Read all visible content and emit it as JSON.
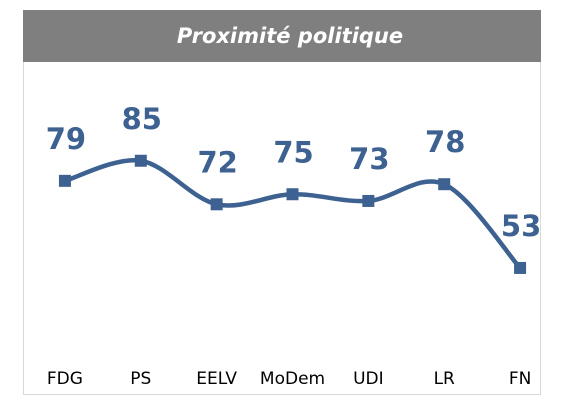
{
  "chart_data": {
    "type": "line",
    "title": "Proximité politique",
    "categories": [
      "FDG",
      "PS",
      "EELV",
      "MoDem",
      "UDI",
      "LR",
      "FN"
    ],
    "series": [
      {
        "color": "#3d6190",
        "values": [
          79,
          85,
          72,
          75,
          73,
          78,
          53
        ]
      }
    ],
    "ylim": [
      30,
      90
    ],
    "smooth": true,
    "markers": "square",
    "data_labels": true
  }
}
